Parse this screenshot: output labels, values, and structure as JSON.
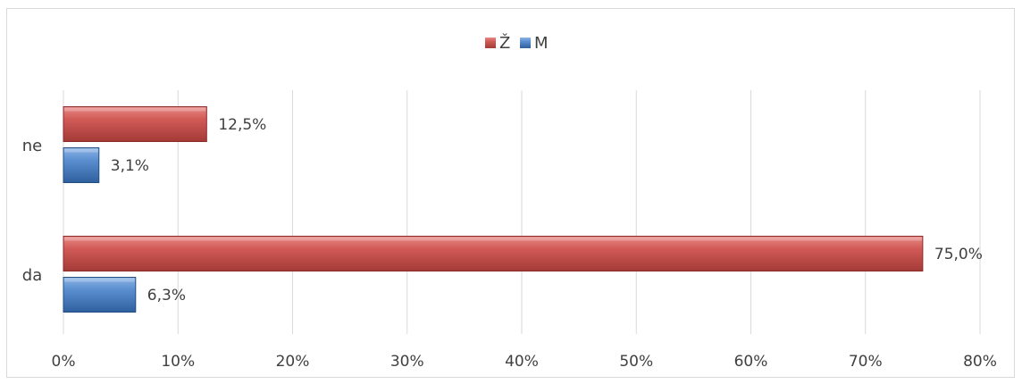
{
  "chart_data": {
    "type": "bar",
    "orientation": "horizontal",
    "categories": [
      "ne",
      "da"
    ],
    "series": [
      {
        "name": "Ž",
        "values": [
          12.5,
          75.0
        ],
        "labels": [
          "12,5%",
          "75,0%"
        ],
        "color": "#c0504d"
      },
      {
        "name": "M",
        "values": [
          3.1,
          6.3
        ],
        "labels": [
          "3,1%",
          "6,3%"
        ],
        "color": "#4f81bd"
      }
    ],
    "xlim": [
      0,
      80
    ],
    "xticks": [
      "0%",
      "10%",
      "20%",
      "30%",
      "40%",
      "50%",
      "60%",
      "70%",
      "80%"
    ],
    "grid": true,
    "legend_position": "top"
  }
}
